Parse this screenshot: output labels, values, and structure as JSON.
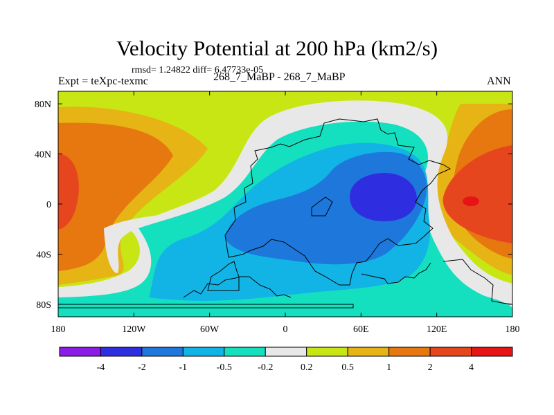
{
  "chart_data": {
    "type": "heatmap",
    "title": "Velocity Potential at 200 hPa (km2/s)",
    "stats": "rmsd= 1.24822 diff= 6.47733e-05",
    "experiment": "Expt = teXpc-texmc",
    "case": "268_7_MaBP - 268_7_MaBP",
    "period": "ANN",
    "xlabel": "",
    "ylabel": "",
    "xlim": [
      -180,
      180
    ],
    "ylim": [
      -90,
      90
    ],
    "x_ticks": [
      {
        "value": -180,
        "label": "180"
      },
      {
        "value": -120,
        "label": "120W"
      },
      {
        "value": -60,
        "label": "60W"
      },
      {
        "value": 0,
        "label": "0"
      },
      {
        "value": 60,
        "label": "60E"
      },
      {
        "value": 120,
        "label": "120E"
      },
      {
        "value": 180,
        "label": "180"
      }
    ],
    "y_ticks": [
      {
        "value": 80,
        "label": "80N"
      },
      {
        "value": 40,
        "label": "40N"
      },
      {
        "value": 0,
        "label": "0"
      },
      {
        "value": -40,
        "label": "40S"
      },
      {
        "value": -80,
        "label": "80S"
      }
    ],
    "colorbar": {
      "colors": [
        "#8a1ee6",
        "#2e2ee0",
        "#1e78dc",
        "#12b4e6",
        "#14e0c0",
        "#e8e8e8",
        "#c8e614",
        "#e6b414",
        "#e6780f",
        "#e6461e",
        "#e61414"
      ],
      "labels": [
        "-4",
        "-2",
        "-1",
        "-0.5",
        "-0.2",
        "0.2",
        "0.5",
        "1",
        "2",
        "4"
      ]
    },
    "field_structure": {
      "units": "km2/s",
      "minimum_center": {
        "lon": 75,
        "lat": 0,
        "value_range": "-4 to -2"
      },
      "maximum_centers": [
        {
          "lon": 150,
          "lat": 0,
          "value_range": "> 4"
        },
        {
          "lon": -178,
          "lat": 5,
          "value_range": "2 to 4"
        }
      ]
    }
  }
}
